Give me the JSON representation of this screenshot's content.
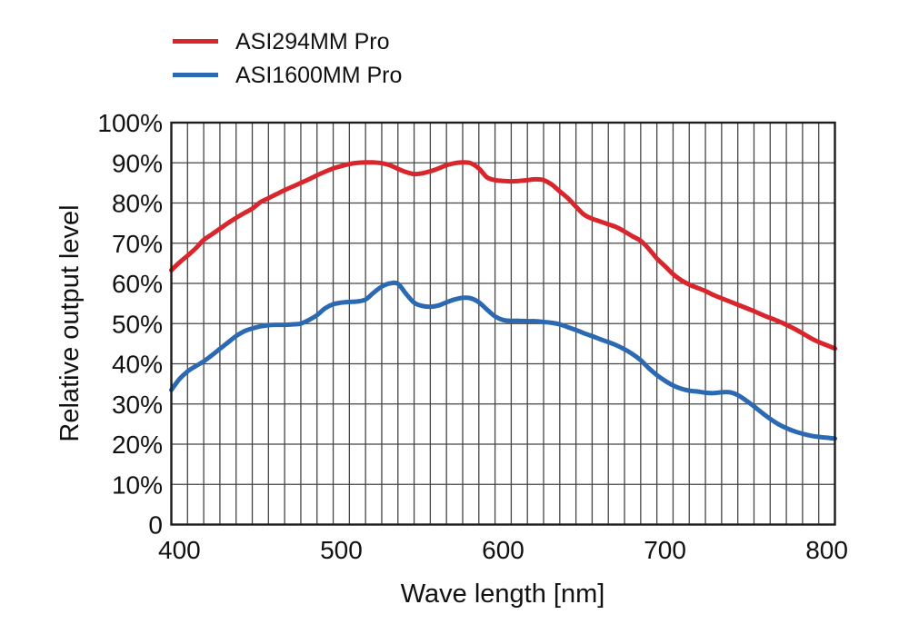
{
  "legend": {
    "items": [
      {
        "label": "ASI294MM Pro",
        "color": "#d8262c"
      },
      {
        "label": "ASI1600MM Pro",
        "color": "#2b6ab3"
      }
    ]
  },
  "chart_data": {
    "type": "line",
    "title": "",
    "xlabel": "Wave length [nm]",
    "ylabel": "Relative output level",
    "xlim": [
      395,
      805
    ],
    "ylim": [
      0,
      100
    ],
    "grid": "on",
    "minor_x_grid_step_nm": 10,
    "major_y_grid_step_pct": 10,
    "legend_position": "top-left",
    "grid_color": "#454545",
    "frame_color": "#1c1c1c",
    "text_color": "#111111",
    "x_ticks": [
      {
        "v": 400,
        "label": "400"
      },
      {
        "v": 500,
        "label": "500"
      },
      {
        "v": 600,
        "label": "600"
      },
      {
        "v": 700,
        "label": "700"
      },
      {
        "v": 800,
        "label": "800"
      }
    ],
    "y_ticks": [
      {
        "v": 0,
        "label": "0"
      },
      {
        "v": 10,
        "label": "10%"
      },
      {
        "v": 20,
        "label": "20%"
      },
      {
        "v": 30,
        "label": "30%"
      },
      {
        "v": 40,
        "label": "40%"
      },
      {
        "v": 50,
        "label": "50%"
      },
      {
        "v": 60,
        "label": "60%"
      },
      {
        "v": 70,
        "label": "70%"
      },
      {
        "v": 80,
        "label": "80%"
      },
      {
        "v": 90,
        "label": "90%"
      },
      {
        "v": 100,
        "label": "100%"
      }
    ],
    "series": [
      {
        "name": "ASI294MM Pro",
        "color": "#d8262c",
        "points": [
          [
            395,
            63.3
          ],
          [
            400,
            65.2
          ],
          [
            405,
            66.9
          ],
          [
            410,
            68.7
          ],
          [
            415,
            70.8
          ],
          [
            420,
            72.2
          ],
          [
            425,
            73.6
          ],
          [
            430,
            75.0
          ],
          [
            435,
            76.3
          ],
          [
            440,
            77.5
          ],
          [
            445,
            78.6
          ],
          [
            450,
            80.2
          ],
          [
            455,
            81.2
          ],
          [
            460,
            82.2
          ],
          [
            465,
            83.2
          ],
          [
            470,
            84.1
          ],
          [
            475,
            85.0
          ],
          [
            480,
            85.9
          ],
          [
            485,
            86.9
          ],
          [
            490,
            87.8
          ],
          [
            495,
            88.6
          ],
          [
            500,
            89.2
          ],
          [
            505,
            89.7
          ],
          [
            510,
            90.0
          ],
          [
            515,
            90.1
          ],
          [
            520,
            90.1
          ],
          [
            525,
            89.9
          ],
          [
            530,
            89.4
          ],
          [
            535,
            88.5
          ],
          [
            540,
            87.7
          ],
          [
            545,
            87.2
          ],
          [
            550,
            87.4
          ],
          [
            555,
            87.9
          ],
          [
            560,
            88.6
          ],
          [
            565,
            89.4
          ],
          [
            570,
            89.9
          ],
          [
            575,
            90.1
          ],
          [
            580,
            89.9
          ],
          [
            585,
            88.6
          ],
          [
            590,
            86.4
          ],
          [
            595,
            85.7
          ],
          [
            600,
            85.5
          ],
          [
            605,
            85.4
          ],
          [
            610,
            85.5
          ],
          [
            615,
            85.7
          ],
          [
            620,
            85.9
          ],
          [
            625,
            85.7
          ],
          [
            630,
            84.6
          ],
          [
            635,
            82.9
          ],
          [
            640,
            81.2
          ],
          [
            645,
            79.1
          ],
          [
            650,
            77.1
          ],
          [
            655,
            76.1
          ],
          [
            660,
            75.4
          ],
          [
            665,
            74.7
          ],
          [
            670,
            74.0
          ],
          [
            675,
            72.9
          ],
          [
            680,
            71.7
          ],
          [
            685,
            70.6
          ],
          [
            690,
            68.6
          ],
          [
            695,
            66.2
          ],
          [
            700,
            64.3
          ],
          [
            705,
            62.3
          ],
          [
            710,
            60.8
          ],
          [
            715,
            59.7
          ],
          [
            720,
            58.9
          ],
          [
            725,
            58.1
          ],
          [
            730,
            57.1
          ],
          [
            735,
            56.3
          ],
          [
            740,
            55.5
          ],
          [
            745,
            54.7
          ],
          [
            750,
            53.9
          ],
          [
            755,
            53.1
          ],
          [
            760,
            52.2
          ],
          [
            765,
            51.4
          ],
          [
            770,
            50.6
          ],
          [
            775,
            49.7
          ],
          [
            780,
            48.7
          ],
          [
            785,
            47.6
          ],
          [
            790,
            46.4
          ],
          [
            795,
            45.4
          ],
          [
            800,
            44.6
          ],
          [
            805,
            43.8
          ]
        ]
      },
      {
        "name": "ASI1600MM Pro",
        "color": "#2b6ab3",
        "points": [
          [
            395,
            33.5
          ],
          [
            400,
            36.2
          ],
          [
            405,
            38.1
          ],
          [
            410,
            39.4
          ],
          [
            415,
            40.6
          ],
          [
            420,
            42.1
          ],
          [
            425,
            43.7
          ],
          [
            430,
            45.3
          ],
          [
            435,
            46.9
          ],
          [
            440,
            48.1
          ],
          [
            445,
            48.8
          ],
          [
            450,
            49.3
          ],
          [
            455,
            49.6
          ],
          [
            460,
            49.7
          ],
          [
            465,
            49.7
          ],
          [
            470,
            49.8
          ],
          [
            475,
            50.0
          ],
          [
            480,
            50.9
          ],
          [
            485,
            52.1
          ],
          [
            490,
            53.8
          ],
          [
            495,
            54.8
          ],
          [
            500,
            55.2
          ],
          [
            505,
            55.4
          ],
          [
            510,
            55.5
          ],
          [
            515,
            56.0
          ],
          [
            520,
            57.7
          ],
          [
            525,
            59.2
          ],
          [
            530,
            60.0
          ],
          [
            535,
            59.9
          ],
          [
            540,
            57.4
          ],
          [
            545,
            55.2
          ],
          [
            550,
            54.4
          ],
          [
            555,
            54.2
          ],
          [
            560,
            54.5
          ],
          [
            565,
            55.3
          ],
          [
            570,
            56.0
          ],
          [
            575,
            56.4
          ],
          [
            580,
            56.3
          ],
          [
            585,
            55.3
          ],
          [
            590,
            53.5
          ],
          [
            595,
            51.8
          ],
          [
            600,
            50.9
          ],
          [
            605,
            50.7
          ],
          [
            610,
            50.7
          ],
          [
            615,
            50.6
          ],
          [
            620,
            50.6
          ],
          [
            625,
            50.4
          ],
          [
            630,
            50.2
          ],
          [
            635,
            49.8
          ],
          [
            640,
            49.1
          ],
          [
            645,
            48.4
          ],
          [
            650,
            47.6
          ],
          [
            655,
            46.9
          ],
          [
            660,
            46.1
          ],
          [
            665,
            45.4
          ],
          [
            670,
            44.6
          ],
          [
            675,
            43.6
          ],
          [
            680,
            42.4
          ],
          [
            685,
            40.9
          ],
          [
            690,
            38.9
          ],
          [
            695,
            37.2
          ],
          [
            700,
            35.8
          ],
          [
            705,
            34.6
          ],
          [
            710,
            33.8
          ],
          [
            715,
            33.3
          ],
          [
            720,
            33.1
          ],
          [
            725,
            32.8
          ],
          [
            730,
            32.7
          ],
          [
            735,
            32.9
          ],
          [
            740,
            32.9
          ],
          [
            745,
            32.2
          ],
          [
            750,
            30.9
          ],
          [
            755,
            29.4
          ],
          [
            760,
            27.8
          ],
          [
            765,
            26.3
          ],
          [
            770,
            25.0
          ],
          [
            775,
            24.0
          ],
          [
            780,
            23.2
          ],
          [
            785,
            22.6
          ],
          [
            790,
            22.1
          ],
          [
            795,
            21.8
          ],
          [
            800,
            21.6
          ],
          [
            805,
            21.4
          ]
        ]
      }
    ]
  }
}
